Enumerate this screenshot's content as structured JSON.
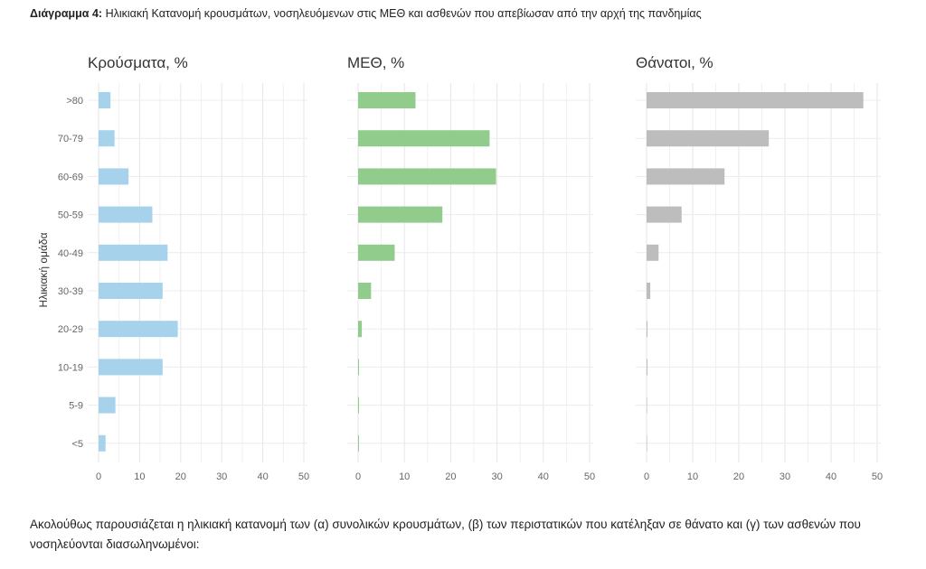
{
  "caption": {
    "label": "Διάγραμμα 4:",
    "text": "Ηλικιακή Κατανομή κρουσμάτων, νοσηλευόμενων στις ΜΕΘ και ασθενών που απεβίωσαν από την αρχή της πανδημίας"
  },
  "body_text": "Ακολούθως παρουσιάζεται η ηλικιακή κατανομή των (α) συνολικών κρουσμάτων, (β) των περιστατικών που κατέληξαν σε θάνατο και (γ) των ασθενών που νοσηλεύονται διασωληνωμένοι:",
  "chart_data": [
    {
      "type": "bar",
      "orientation": "horizontal",
      "title": "Κρούσματα, %",
      "ylabel": "Ηλικιακή ομάδα",
      "xlabel": "",
      "categories": [
        ">80",
        "70-79",
        "60-69",
        "50-59",
        "40-49",
        "30-39",
        "20-29",
        "10-19",
        "5-9",
        "<5"
      ],
      "values": [
        2.9,
        3.9,
        7.3,
        13.1,
        16.8,
        15.6,
        19.3,
        15.6,
        4.1,
        1.7
      ],
      "xlim": [
        0,
        50
      ],
      "xticks": [
        "0",
        "10",
        "20",
        "30",
        "40",
        "50"
      ],
      "color": "#a6d2ec",
      "grid": true
    },
    {
      "type": "bar",
      "orientation": "horizontal",
      "title": "ΜΕΘ, %",
      "categories": [
        ">80",
        "70-79",
        "60-69",
        "50-59",
        "40-49",
        "30-39",
        "20-29",
        "10-19",
        "5-9",
        "<5"
      ],
      "values": [
        12.4,
        28.4,
        29.8,
        18.2,
        7.9,
        2.8,
        0.8,
        0.2,
        0.1,
        0.1
      ],
      "xlim": [
        0,
        50
      ],
      "xticks": [
        "0",
        "10",
        "20",
        "30",
        "40",
        "50"
      ],
      "color": "#92cc8d",
      "grid": true
    },
    {
      "type": "bar",
      "orientation": "horizontal",
      "title": "Θάνατοι, %",
      "categories": [
        ">80",
        "70-79",
        "60-69",
        "50-59",
        "40-49",
        "30-39",
        "20-29",
        "10-19",
        "5-9",
        "<5"
      ],
      "values": [
        47.0,
        26.5,
        16.9,
        7.6,
        2.6,
        0.8,
        0.2,
        0.1,
        0,
        0
      ],
      "xlim": [
        0,
        50
      ],
      "xticks": [
        "0",
        "10",
        "20",
        "30",
        "40",
        "50"
      ],
      "color": "#bdbdbd",
      "grid": true
    }
  ]
}
